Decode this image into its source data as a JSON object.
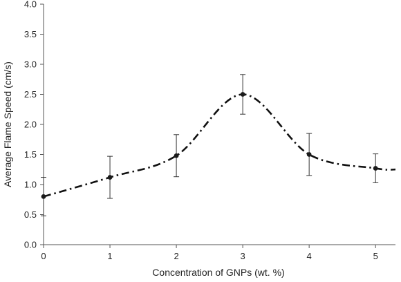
{
  "chart_data": {
    "type": "scatter",
    "title": "",
    "xlabel": "Concentration of GNPs (wt. %)",
    "ylabel": "Average Flame Speed (cm/s)",
    "xlim": [
      0,
      5.3
    ],
    "ylim": [
      0,
      4.0
    ],
    "x_ticks": [
      0,
      1,
      2,
      3,
      4,
      5
    ],
    "x_tick_labels": [
      "0",
      "1",
      "2",
      "3",
      "4",
      "5"
    ],
    "y_ticks": [
      0,
      0.5,
      1.0,
      1.5,
      2.0,
      2.5,
      3.0,
      3.5,
      4.0
    ],
    "y_tick_labels": [
      "0.0",
      "0.5",
      "1.0",
      "1.5",
      "2.0",
      "2.5",
      "3.0",
      "3.5",
      "4.0"
    ],
    "grid": false,
    "series": [
      {
        "x": [
          0,
          1,
          2,
          3,
          4,
          5
        ],
        "y": [
          0.8,
          1.12,
          1.48,
          2.5,
          1.5,
          1.27
        ],
        "error": [
          0.32,
          0.35,
          0.35,
          0.33,
          0.35,
          0.24
        ],
        "color": "#1a1a1a",
        "marker": "circle"
      }
    ],
    "trend_line": {
      "style": "dash-dot",
      "color": "#111111",
      "x": [
        0,
        1,
        2,
        3,
        4,
        5,
        5.3
      ],
      "y": [
        0.8,
        1.12,
        1.48,
        2.5,
        1.5,
        1.27,
        1.25
      ]
    }
  }
}
